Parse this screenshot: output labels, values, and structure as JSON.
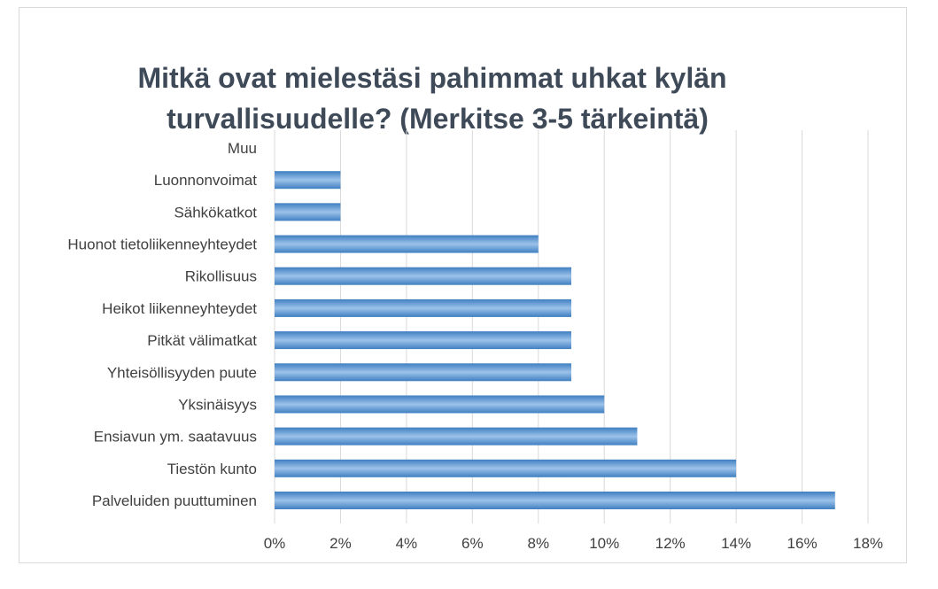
{
  "chart_data": {
    "type": "bar",
    "orientation": "horizontal",
    "title": "Mitkä ovat mielestäsi pahimmat uhkat kylän turvallisuudelle? (Merkitse 3-5 tärkeintä)",
    "title_lines": [
      "Mitkä ovat mielestäsi pahimmat uhkat kylän",
      "turvallisuudelle? (Merkitse 3-5 tärkeintä)"
    ],
    "categories": [
      "Palveluiden puuttuminen",
      "Tiestön kunto",
      "Ensiavun ym. saatavuus",
      "Yksinäisyys",
      "Yhteisöllisyyden puute",
      "Pitkät välimatkat",
      "Heikot liikenneyhteydet",
      "Rikollisuus",
      "Huonot tietoliikenneyhteydet",
      "Sähkökatkot",
      "Luonnonvoimat",
      "Muu"
    ],
    "values": [
      17,
      14,
      11,
      10,
      9,
      9,
      9,
      9,
      8,
      2,
      2,
      0
    ],
    "value_unit": "%",
    "xlim": [
      0,
      18
    ],
    "x_ticks": [
      0,
      2,
      4,
      6,
      8,
      10,
      12,
      14,
      16,
      18
    ],
    "x_tick_labels": [
      "0%",
      "2%",
      "4%",
      "6%",
      "8%",
      "10%",
      "12%",
      "14%",
      "16%",
      "18%"
    ],
    "xlabel": "",
    "ylabel": "",
    "grid": "vertical",
    "legend": "none",
    "bar_color": "#5b9bd5",
    "bar_gradient_dark": "#3f7fc1",
    "bar_gradient_light": "#9cc2ea"
  }
}
